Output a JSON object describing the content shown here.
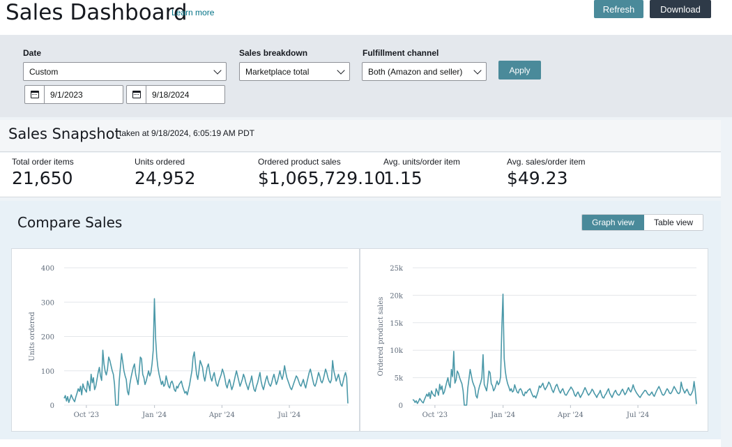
{
  "header": {
    "title": "Sales Dashboard",
    "learn_more": "Learn more",
    "refresh_label": "Refresh",
    "download_label": "Download"
  },
  "filters": {
    "date_label": "Date",
    "date_value": "Custom",
    "start_date": "9/1/2023",
    "end_date": "9/18/2024",
    "breakdown_label": "Sales breakdown",
    "breakdown_value": "Marketplace total",
    "channel_label": "Fulfillment channel",
    "channel_value": "Both (Amazon and seller)",
    "apply_label": "Apply"
  },
  "snapshot": {
    "title": "Sales Snapshot",
    "taken_at": "taken at 9/18/2024, 6:05:19 AM PDT",
    "metrics": [
      {
        "label": "Total order items",
        "value": "21,650"
      },
      {
        "label": "Units ordered",
        "value": "24,952"
      },
      {
        "label": "Ordered product sales",
        "value": "$1,065,729.10"
      },
      {
        "label": "Avg. units/order item",
        "value": "1.15"
      },
      {
        "label": "Avg. sales/order item",
        "value": "$49.23"
      }
    ]
  },
  "compare": {
    "title": "Compare Sales",
    "graph_view_label": "Graph view",
    "table_view_label": "Table view"
  },
  "colors": {
    "accent": "#4a8a9a",
    "dark_button": "#2e3a48",
    "line": "#4a98a8"
  },
  "chart_data": [
    {
      "type": "line",
      "ylabel": "Units ordered",
      "xlabel": "",
      "x_ticks": [
        "Oct '23",
        "Jan '24",
        "Apr '24",
        "Jul '24"
      ],
      "y_ticks": [
        "0",
        "100",
        "200",
        "300",
        "400"
      ],
      "ylim": [
        0,
        400
      ],
      "x_start": "2023-09-01",
      "x_end": "2024-09-18",
      "grid": true,
      "series": [
        {
          "values": [
            20,
            28,
            12,
            25,
            8,
            18,
            30,
            22,
            15,
            10,
            24,
            35,
            48,
            40,
            55,
            30,
            62,
            50,
            44,
            38,
            70,
            58,
            42,
            90,
            65,
            80,
            45,
            55,
            75,
            95,
            110,
            85,
            72,
            160,
            120,
            98,
            88,
            105,
            140,
            130,
            115,
            100,
            90,
            60,
            0,
            0,
            0,
            70,
            110,
            150,
            125,
            100,
            85,
            75,
            40,
            30,
            60,
            80,
            95,
            110,
            120,
            90,
            75,
            60,
            95,
            140,
            135,
            90,
            80,
            60,
            70,
            85,
            100,
            85,
            95,
            120,
            160,
            310,
            195,
            140,
            110,
            90,
            75,
            60,
            70,
            55,
            60,
            85,
            70,
            55,
            50,
            65,
            70,
            60,
            45,
            40,
            55,
            50,
            60,
            65,
            70,
            55,
            45,
            35,
            40,
            30,
            45,
            60,
            80,
            100,
            140,
            155,
            120,
            90,
            75,
            100,
            130,
            120,
            110,
            85,
            70,
            90,
            110,
            120,
            100,
            80,
            70,
            85,
            95,
            75,
            60,
            55,
            70,
            80,
            90,
            105,
            95,
            80,
            60,
            50,
            65,
            75,
            60,
            45,
            55,
            70,
            85,
            100,
            85,
            70,
            55,
            65,
            75,
            90,
            80,
            65,
            55,
            45,
            60,
            70,
            85,
            60,
            45,
            40,
            55,
            65,
            80,
            95,
            70,
            55,
            45,
            60,
            75,
            85,
            70,
            60,
            55,
            65,
            80,
            90,
            75,
            60,
            70,
            85,
            100,
            85,
            75,
            90,
            115,
            95,
            80,
            70,
            60,
            50,
            45,
            55,
            65,
            75,
            85,
            80,
            70,
            60,
            55,
            65,
            75,
            60,
            50,
            65,
            80,
            95,
            105,
            90,
            75,
            60,
            55,
            65,
            80,
            95,
            85,
            70,
            65,
            75,
            90,
            105,
            95,
            80,
            70,
            65,
            75,
            130,
            100,
            85,
            70,
            80,
            90,
            75,
            60,
            55,
            70,
            85,
            95,
            80,
            5
          ]
        }
      ]
    },
    {
      "type": "line",
      "ylabel": "Ordered product sales",
      "xlabel": "",
      "x_ticks": [
        "Oct '23",
        "Jan '24",
        "Apr '24",
        "Jul '24"
      ],
      "y_ticks": [
        "0",
        "5k",
        "10k",
        "15k",
        "20k",
        "25k"
      ],
      "ylim": [
        0,
        25000
      ],
      "x_start": "2023-09-01",
      "x_end": "2024-09-18",
      "grid": true,
      "series": [
        {
          "values": [
            1000,
            900,
            500,
            800,
            300,
            700,
            1200,
            900,
            600,
            400,
            1000,
            1500,
            2000,
            1600,
            2300,
            1200,
            2600,
            2100,
            1800,
            1600,
            3000,
            2500,
            1800,
            3800,
            2800,
            3500,
            2000,
            2400,
            3300,
            4200,
            5000,
            3800,
            3200,
            6500,
            5200,
            9800,
            4000,
            4600,
            6200,
            5800,
            5000,
            4400,
            3900,
            2600,
            0,
            0,
            0,
            3100,
            4800,
            6500,
            5400,
            4300,
            3700,
            3200,
            1700,
            1300,
            2600,
            3500,
            4100,
            5000,
            9200,
            3800,
            3200,
            2600,
            4100,
            6200,
            5900,
            3900,
            3500,
            2600,
            3000,
            3700,
            4400,
            3700,
            4100,
            5200,
            14000,
            20200,
            8500,
            6100,
            4800,
            3900,
            3300,
            2600,
            3000,
            2400,
            2600,
            3700,
            3000,
            2400,
            2200,
            2800,
            3000,
            2600,
            1900,
            1700,
            2400,
            2200,
            2600,
            2800,
            3000,
            2400,
            1900,
            1500,
            1700,
            1300,
            1900,
            2600,
            3500,
            3200,
            3600,
            4000,
            3200,
            2800,
            3200,
            3600,
            4200,
            3900,
            3300,
            2700,
            2300,
            2900,
            3500,
            3800,
            3200,
            2600,
            2200,
            2700,
            3000,
            2400,
            1900,
            1800,
            2200,
            2600,
            2900,
            3300,
            3000,
            2600,
            1900,
            1600,
            2100,
            2400,
            1900,
            1400,
            1800,
            2200,
            2700,
            3200,
            2700,
            2200,
            1800,
            2100,
            2400,
            2900,
            2600,
            2100,
            1800,
            1400,
            1900,
            2200,
            2700,
            1900,
            1400,
            1300,
            1800,
            2100,
            2600,
            3000,
            2200,
            1800,
            1400,
            1900,
            2400,
            2700,
            2200,
            1900,
            1800,
            2100,
            2600,
            2900,
            2400,
            1900,
            2200,
            2700,
            3200,
            2700,
            2400,
            2900,
            3700,
            3000,
            2600,
            2200,
            1900,
            1600,
            1400,
            1800,
            2100,
            2400,
            2700,
            2600,
            2200,
            1900,
            1800,
            2100,
            2400,
            1900,
            1600,
            2100,
            2600,
            3000,
            3400,
            2900,
            2400,
            1900,
            1800,
            2100,
            2600,
            3000,
            2700,
            2200,
            2100,
            2400,
            2900,
            3400,
            3000,
            2600,
            2200,
            2100,
            2400,
            4200,
            3200,
            2700,
            2200,
            2600,
            2900,
            2400,
            1900,
            1800,
            2200,
            2700,
            4300,
            2600,
            200
          ]
        }
      ]
    }
  ]
}
